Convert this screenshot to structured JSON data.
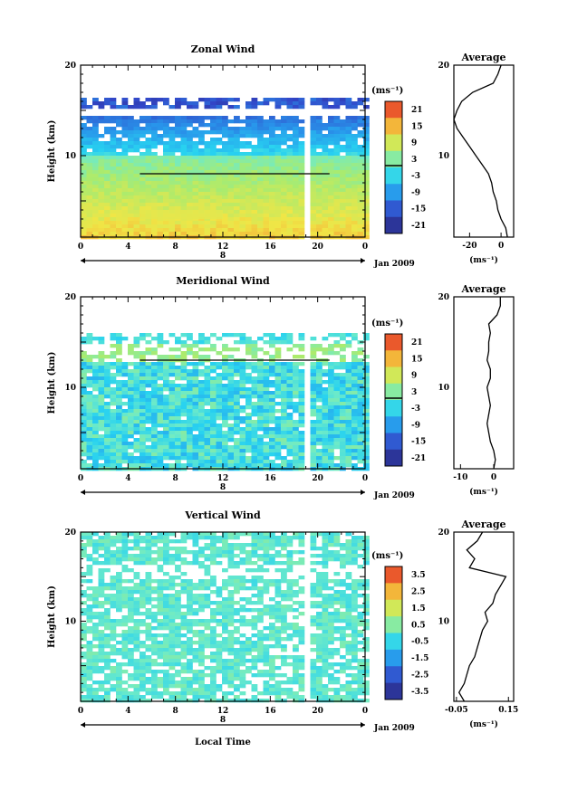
{
  "chart_data": [
    {
      "type": "heatmap",
      "title": "Zonal Wind",
      "ylabel": "Height (km)",
      "xlabel": "",
      "xlim": [
        0,
        24
      ],
      "ylim": [
        1,
        20
      ],
      "xticks": [
        "0",
        "4",
        "8",
        "12",
        "16",
        "20",
        "0"
      ],
      "yticks": [
        "10",
        "20"
      ],
      "date_label": "Jan 2009",
      "day_label": "8",
      "colorbar": {
        "unit": "(ms⁻¹)",
        "ticks": [
          "21",
          "15",
          "9",
          "3",
          "-3",
          "-9",
          "-15",
          "-21"
        ],
        "min": -24,
        "max": 24
      },
      "average": {
        "title": "Average",
        "xticks": [
          "-20",
          "0"
        ],
        "xunit": "(ms⁻¹)",
        "xlim": [
          -30,
          8
        ],
        "profile": [
          [
            1,
            4
          ],
          [
            2,
            3
          ],
          [
            3,
            0
          ],
          [
            4,
            -2
          ],
          [
            5,
            -3
          ],
          [
            6,
            -5
          ],
          [
            7,
            -6
          ],
          [
            8,
            -8
          ],
          [
            9,
            -12
          ],
          [
            10,
            -16
          ],
          [
            11,
            -20
          ],
          [
            12,
            -24
          ],
          [
            13,
            -28
          ],
          [
            14,
            -30
          ],
          [
            15,
            -28
          ],
          [
            16,
            -25
          ],
          [
            17,
            -18
          ],
          [
            18,
            -5
          ],
          [
            19,
            -2
          ],
          [
            20,
            0
          ]
        ]
      }
    },
    {
      "type": "heatmap",
      "title": "Meridional Wind",
      "ylabel": "Height (km)",
      "xlabel": "",
      "xlim": [
        0,
        24
      ],
      "ylim": [
        1,
        20
      ],
      "xticks": [
        "0",
        "4",
        "8",
        "12",
        "16",
        "20",
        "0"
      ],
      "yticks": [
        "10",
        "20"
      ],
      "date_label": "Jan 2009",
      "day_label": "8",
      "colorbar": {
        "unit": "(ms⁻¹)",
        "ticks": [
          "21",
          "15",
          "9",
          "3",
          "-3",
          "-9",
          "-15",
          "-21"
        ],
        "min": -24,
        "max": 24
      },
      "average": {
        "title": "Average",
        "xticks": [
          "-10",
          "0"
        ],
        "xunit": "(ms⁻¹)",
        "xlim": [
          -12,
          6
        ],
        "profile": [
          [
            1,
            0
          ],
          [
            2,
            0.5
          ],
          [
            3,
            0
          ],
          [
            4,
            -1
          ],
          [
            5,
            -1.5
          ],
          [
            6,
            -2
          ],
          [
            7,
            -1.5
          ],
          [
            8,
            -1
          ],
          [
            9,
            -1.5
          ],
          [
            10,
            -2
          ],
          [
            11,
            -1
          ],
          [
            12,
            -1
          ],
          [
            13,
            -2
          ],
          [
            14,
            -1.5
          ],
          [
            15,
            -1.5
          ],
          [
            16,
            -1
          ],
          [
            17,
            -1.5
          ],
          [
            18,
            1
          ],
          [
            19,
            2
          ],
          [
            20,
            2
          ]
        ]
      }
    },
    {
      "type": "heatmap",
      "title": "Vertical Wind",
      "ylabel": "Height (km)",
      "xlabel": "Local Time",
      "xlim": [
        0,
        24
      ],
      "ylim": [
        1,
        20
      ],
      "xticks": [
        "0",
        "4",
        "8",
        "12",
        "16",
        "20",
        "0"
      ],
      "yticks": [
        "10",
        "20"
      ],
      "date_label": "Jan 2009",
      "day_label": "8",
      "colorbar": {
        "unit": "(ms⁻¹)",
        "ticks": [
          "3.5",
          "2.5",
          "1.5",
          "0.5",
          "-0.5",
          "-1.5",
          "-2.5",
          "-3.5"
        ],
        "min": -4,
        "max": 4
      },
      "average": {
        "title": "Average",
        "xticks": [
          "-0.05",
          "0.15"
        ],
        "xunit": "(ms⁻¹)",
        "xlim": [
          -0.06,
          0.17
        ],
        "profile": [
          [
            1,
            -0.02
          ],
          [
            2,
            -0.04
          ],
          [
            3,
            -0.02
          ],
          [
            4,
            -0.01
          ],
          [
            5,
            0.0
          ],
          [
            6,
            0.02
          ],
          [
            7,
            0.03
          ],
          [
            8,
            0.04
          ],
          [
            9,
            0.05
          ],
          [
            10,
            0.07
          ],
          [
            11,
            0.06
          ],
          [
            12,
            0.09
          ],
          [
            13,
            0.1
          ],
          [
            14,
            0.12
          ],
          [
            15,
            0.14
          ],
          [
            16,
            0.0
          ],
          [
            17,
            0.02
          ],
          [
            18,
            -0.01
          ],
          [
            19,
            0.03
          ],
          [
            20,
            0.05
          ]
        ]
      }
    }
  ]
}
